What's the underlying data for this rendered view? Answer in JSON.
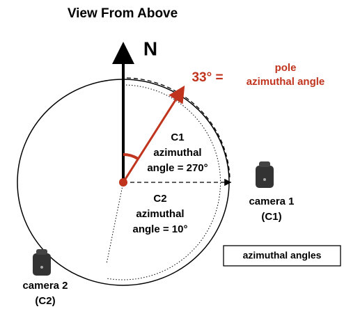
{
  "title": "View From Above",
  "north_label": "N",
  "pole_angle": {
    "value": "33° =",
    "line1": "pole",
    "line2": "azimuthal angle"
  },
  "c1_angle": {
    "line1": "C1",
    "line2": "azimuthal",
    "line3": "angle = 270°"
  },
  "c2_angle": {
    "line1": "C2",
    "line2": "azimuthal",
    "line3": "angle = 10°"
  },
  "camera1": {
    "line1": "camera 1",
    "line2": "(C1)"
  },
  "camera2": {
    "line1": "camera 2",
    "line2": "(C2)"
  },
  "legend_box": "azimuthal angles"
}
